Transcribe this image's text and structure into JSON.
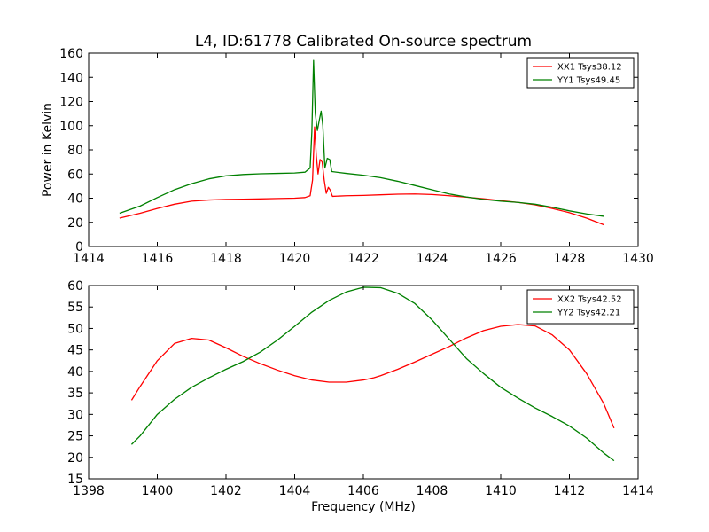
{
  "chart_data": [
    {
      "type": "line",
      "title": "L4, ID:61778 Calibrated On-source spectrum",
      "xlabel": "",
      "ylabel": "Power in Kelvin",
      "xlim": [
        1414,
        1430
      ],
      "ylim": [
        0,
        160
      ],
      "xticks": [
        1414,
        1416,
        1418,
        1420,
        1422,
        1424,
        1426,
        1428,
        1430
      ],
      "yticks": [
        0,
        20,
        40,
        60,
        80,
        100,
        120,
        140,
        160
      ],
      "grid": false,
      "legend": "top-right",
      "series": [
        {
          "name": "XX1 Tsys38.12",
          "color": "#ff0000",
          "points": [
            [
              1414.9,
              23.5
            ],
            [
              1415.5,
              27.5
            ],
            [
              1416,
              31.5
            ],
            [
              1416.5,
              35
            ],
            [
              1417,
              37.5
            ],
            [
              1417.5,
              38.5
            ],
            [
              1418,
              39
            ],
            [
              1418.5,
              39.2
            ],
            [
              1419,
              39.4
            ],
            [
              1419.5,
              39.7
            ],
            [
              1420,
              40
            ],
            [
              1420.3,
              40.5
            ],
            [
              1420.45,
              42
            ],
            [
              1420.52,
              55
            ],
            [
              1420.58,
              99
            ],
            [
              1420.63,
              75
            ],
            [
              1420.68,
              60
            ],
            [
              1420.74,
              72
            ],
            [
              1420.8,
              70
            ],
            [
              1420.86,
              55
            ],
            [
              1420.92,
              44
            ],
            [
              1420.98,
              49
            ],
            [
              1421.03,
              47
            ],
            [
              1421.1,
              41.5
            ],
            [
              1421.5,
              42
            ],
            [
              1422,
              42.3
            ],
            [
              1422.5,
              42.8
            ],
            [
              1423,
              43.3
            ],
            [
              1423.5,
              43.5
            ],
            [
              1424,
              43
            ],
            [
              1424.5,
              42
            ],
            [
              1425,
              40.8
            ],
            [
              1425.5,
              39.5
            ],
            [
              1426,
              38
            ],
            [
              1426.5,
              36.5
            ],
            [
              1427,
              34.5
            ],
            [
              1427.5,
              31.5
            ],
            [
              1428,
              28
            ],
            [
              1428.5,
              23.5
            ],
            [
              1429,
              18
            ]
          ]
        },
        {
          "name": "YY1 Tsys49.45",
          "color": "#008000",
          "points": [
            [
              1414.9,
              27.5
            ],
            [
              1415.5,
              33.5
            ],
            [
              1416,
              40.5
            ],
            [
              1416.5,
              47
            ],
            [
              1417,
              52
            ],
            [
              1417.5,
              56
            ],
            [
              1418,
              58.5
            ],
            [
              1418.5,
              59.6
            ],
            [
              1419,
              60.2
            ],
            [
              1419.5,
              60.5
            ],
            [
              1420,
              60.8
            ],
            [
              1420.3,
              61.5
            ],
            [
              1420.45,
              65
            ],
            [
              1420.5,
              95
            ],
            [
              1420.55,
              154
            ],
            [
              1420.6,
              110
            ],
            [
              1420.66,
              96
            ],
            [
              1420.72,
              105
            ],
            [
              1420.77,
              112
            ],
            [
              1420.82,
              100
            ],
            [
              1420.88,
              65
            ],
            [
              1420.95,
              73
            ],
            [
              1421.02,
              72
            ],
            [
              1421.08,
              62
            ],
            [
              1421.5,
              60.5
            ],
            [
              1422,
              59
            ],
            [
              1422.5,
              57
            ],
            [
              1423,
              54
            ],
            [
              1423.5,
              50.5
            ],
            [
              1424,
              47
            ],
            [
              1424.5,
              43.5
            ],
            [
              1425,
              41
            ],
            [
              1425.5,
              39
            ],
            [
              1426,
              37.5
            ],
            [
              1426.5,
              36.5
            ],
            [
              1427,
              35
            ],
            [
              1427.5,
              32.5
            ],
            [
              1428,
              29.5
            ],
            [
              1428.5,
              27
            ],
            [
              1429,
              25
            ]
          ]
        }
      ]
    },
    {
      "type": "line",
      "title": "",
      "xlabel": "Frequency (MHz)",
      "ylabel": "",
      "xlim": [
        1398,
        1414
      ],
      "ylim": [
        15,
        60
      ],
      "xticks": [
        1398,
        1400,
        1402,
        1404,
        1406,
        1408,
        1410,
        1412,
        1414
      ],
      "yticks": [
        15,
        20,
        25,
        30,
        35,
        40,
        45,
        50,
        55,
        60
      ],
      "grid": false,
      "legend": "top-right",
      "series": [
        {
          "name": "XX2 Tsys42.52",
          "color": "#ff0000",
          "points": [
            [
              1399.25,
              33.3
            ],
            [
              1399.5,
              36.5
            ],
            [
              1400,
              42.5
            ],
            [
              1400.5,
              46.5
            ],
            [
              1401,
              47.7
            ],
            [
              1401.5,
              47.3
            ],
            [
              1402,
              45.5
            ],
            [
              1402.5,
              43.5
            ],
            [
              1403,
              41.8
            ],
            [
              1403.5,
              40.3
            ],
            [
              1404,
              39
            ],
            [
              1404.5,
              38
            ],
            [
              1405,
              37.5
            ],
            [
              1405.5,
              37.5
            ],
            [
              1406,
              38
            ],
            [
              1406.3,
              38.5
            ],
            [
              1406.5,
              39
            ],
            [
              1407,
              40.5
            ],
            [
              1407.5,
              42.2
            ],
            [
              1408,
              44
            ],
            [
              1408.5,
              45.8
            ],
            [
              1409,
              47.8
            ],
            [
              1409.5,
              49.5
            ],
            [
              1410,
              50.5
            ],
            [
              1410.5,
              50.9
            ],
            [
              1411,
              50.6
            ],
            [
              1411.5,
              48.5
            ],
            [
              1412,
              45
            ],
            [
              1412.5,
              39.5
            ],
            [
              1413,
              32.5
            ],
            [
              1413.3,
              26.8
            ]
          ]
        },
        {
          "name": "YY2 Tsys42.21",
          "color": "#008000",
          "points": [
            [
              1399.25,
              23
            ],
            [
              1399.5,
              25
            ],
            [
              1400,
              30
            ],
            [
              1400.5,
              33.5
            ],
            [
              1401,
              36.3
            ],
            [
              1401.5,
              38.5
            ],
            [
              1402,
              40.5
            ],
            [
              1402.5,
              42.3
            ],
            [
              1403,
              44.5
            ],
            [
              1403.5,
              47.3
            ],
            [
              1404,
              50.5
            ],
            [
              1404.5,
              53.8
            ],
            [
              1405,
              56.5
            ],
            [
              1405.5,
              58.5
            ],
            [
              1406,
              59.6
            ],
            [
              1406.5,
              59.5
            ],
            [
              1407,
              58.2
            ],
            [
              1407.5,
              55.8
            ],
            [
              1408,
              52
            ],
            [
              1408.5,
              47.5
            ],
            [
              1409,
              43
            ],
            [
              1409.5,
              39.5
            ],
            [
              1410,
              36.3
            ],
            [
              1410.5,
              33.8
            ],
            [
              1411,
              31.5
            ],
            [
              1411.5,
              29.5
            ],
            [
              1412,
              27.3
            ],
            [
              1412.5,
              24.5
            ],
            [
              1413,
              21
            ],
            [
              1413.3,
              19.2
            ]
          ]
        }
      ]
    }
  ]
}
